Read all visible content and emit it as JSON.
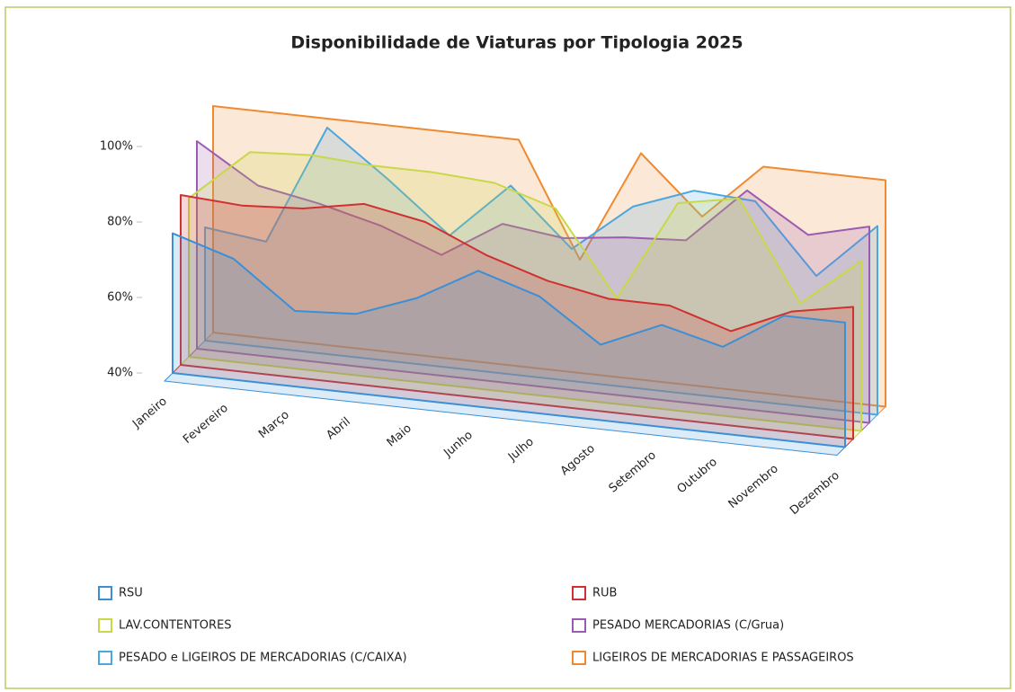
{
  "chart_data": {
    "type": "area3d",
    "title": "Disponibilidade de Viaturas por Tipologia 2025",
    "categories": [
      "Janeiro",
      "Fevereiro",
      "Março",
      "Abril",
      "Maio",
      "Junho",
      "Julho",
      "Agosto",
      "Setembro",
      "Outubro",
      "Novembro",
      "Dezembro"
    ],
    "series": [
      {
        "name": "RSU",
        "color": "#3a8fd6",
        "values": [
          77,
          72,
          60,
          61,
          67,
          76,
          71,
          60,
          67,
          63,
          73,
          73
        ]
      },
      {
        "name": "RUB",
        "color": "#d03030",
        "values": [
          85,
          84,
          85,
          88,
          85,
          78,
          73,
          70,
          70,
          65,
          72,
          75
        ]
      },
      {
        "name": "LAV.CONTENTORES",
        "color": "#c8d848",
        "values": [
          82,
          96,
          97,
          96,
          96,
          95,
          90,
          68,
          95,
          98,
          72,
          85
        ]
      },
      {
        "name": "PESADO MERCADORIAS (C/Grua)",
        "color": "#9a5cb0",
        "values": [
          95,
          85,
          82,
          78,
          72,
          82,
          80,
          82,
          83,
          98,
          88,
          92
        ]
      },
      {
        "name": "PESADO e LIGEIROS DE MERCADORIAS (C/CAIXA)",
        "color": "#4aa8e0",
        "values": [
          70,
          68,
          100,
          88,
          75,
          90,
          75,
          88,
          94,
          93,
          75,
          90
        ]
      },
      {
        "name": "LIGEIROS DE MERCADORIAS E PASSAGEIROS",
        "color": "#f08a30",
        "values": [
          100,
          100,
          100,
          100,
          100,
          100,
          70,
          100,
          85,
          100,
          100,
          100
        ]
      }
    ],
    "ylim": [
      40,
      100
    ],
    "yticks": [
      {
        "value": 40,
        "label": "40%"
      },
      {
        "value": 60,
        "label": "60%"
      },
      {
        "value": 80,
        "label": "80%"
      },
      {
        "value": 100,
        "label": "100%"
      }
    ]
  }
}
